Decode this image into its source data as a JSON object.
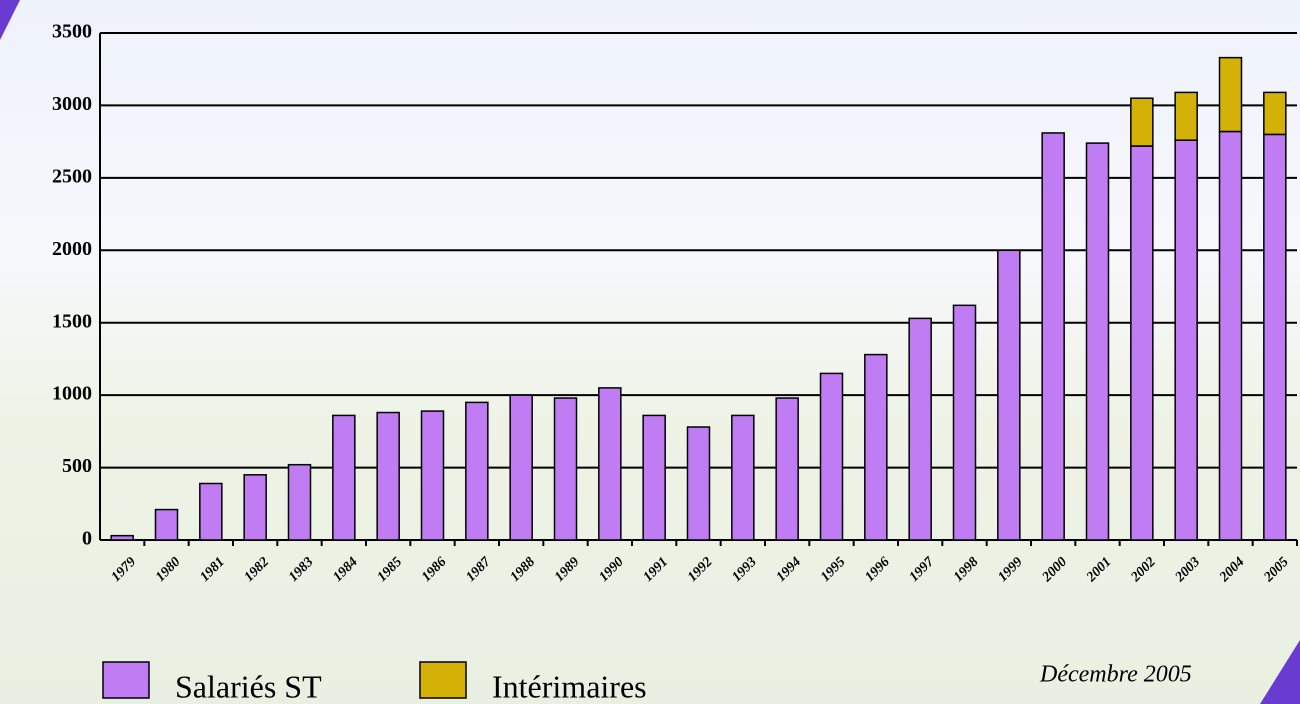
{
  "chart_data": {
    "type": "stacked_bar",
    "categories": [
      "1979",
      "1980",
      "1981",
      "1982",
      "1983",
      "1984",
      "1985",
      "1986",
      "1987",
      "1988",
      "1989",
      "1990",
      "1991",
      "1992",
      "1993",
      "1994",
      "1995",
      "1996",
      "1997",
      "1998",
      "1999",
      "2000",
      "2001",
      "2002",
      "2003",
      "2004",
      "2005"
    ],
    "series": [
      {
        "name": "Salariés ST",
        "color": "#c07cf2",
        "values": [
          30,
          210,
          390,
          450,
          520,
          860,
          880,
          890,
          950,
          1000,
          980,
          1050,
          860,
          780,
          860,
          980,
          1150,
          1280,
          1530,
          1620,
          2000,
          2810,
          2740,
          2720,
          2760,
          2820,
          2800
        ]
      },
      {
        "name": "Intérimaires",
        "color": "#d4b106",
        "values": [
          0,
          0,
          0,
          0,
          0,
          0,
          0,
          0,
          0,
          0,
          0,
          0,
          0,
          0,
          0,
          0,
          0,
          0,
          0,
          0,
          0,
          0,
          0,
          330,
          330,
          510,
          290
        ]
      }
    ],
    "ylim": [
      0,
      3500
    ],
    "yticks": [
      0,
      500,
      1000,
      1500,
      2000,
      2500,
      3000,
      3500
    ],
    "grid": true,
    "annotation": "Décembre 2005"
  }
}
